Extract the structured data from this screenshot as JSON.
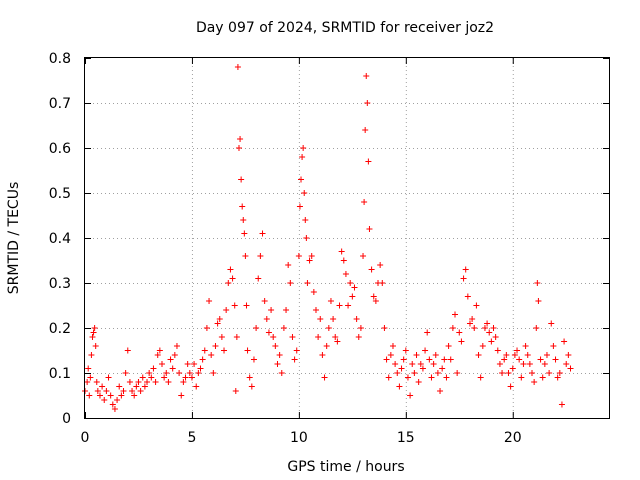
{
  "chart_data": {
    "type": "scatter",
    "title": "Day 097 of 2024, SRMTID for receiver joz2",
    "xlabel": "GPS time / hours",
    "ylabel": "SRMTID / TECUs",
    "xlim": [
      0,
      24.5
    ],
    "ylim": [
      0,
      0.8
    ],
    "xticks": [
      0,
      5,
      10,
      15,
      20
    ],
    "yticks": [
      0,
      0.1,
      0.2,
      0.3,
      0.4,
      0.5,
      0.6,
      0.7,
      0.8
    ],
    "xtick_labels": [
      "0",
      "5",
      "10",
      "15",
      "20"
    ],
    "ytick_labels": [
      "0",
      "0.1",
      "0.2",
      "0.3",
      "0.4",
      "0.5",
      "0.6",
      "0.7",
      "0.8"
    ],
    "grid": true,
    "marker": "plus",
    "color": "#ff0000",
    "series": [
      {
        "name": "SRMTID",
        "points": [
          [
            0.0,
            0.06
          ],
          [
            0.1,
            0.08
          ],
          [
            0.15,
            0.11
          ],
          [
            0.2,
            0.05
          ],
          [
            0.25,
            0.09
          ],
          [
            0.3,
            0.14
          ],
          [
            0.35,
            0.18
          ],
          [
            0.4,
            0.19
          ],
          [
            0.45,
            0.2
          ],
          [
            0.5,
            0.16
          ],
          [
            0.55,
            0.08
          ],
          [
            0.6,
            0.06
          ],
          [
            0.7,
            0.05
          ],
          [
            0.8,
            0.07
          ],
          [
            0.9,
            0.04
          ],
          [
            1.0,
            0.06
          ],
          [
            1.1,
            0.09
          ],
          [
            1.2,
            0.05
          ],
          [
            1.3,
            0.03
          ],
          [
            1.4,
            0.02
          ],
          [
            1.5,
            0.04
          ],
          [
            1.6,
            0.07
          ],
          [
            1.7,
            0.05
          ],
          [
            1.8,
            0.06
          ],
          [
            1.9,
            0.1
          ],
          [
            2.0,
            0.15
          ],
          [
            2.1,
            0.08
          ],
          [
            2.2,
            0.06
          ],
          [
            2.3,
            0.05
          ],
          [
            2.4,
            0.07
          ],
          [
            2.5,
            0.08
          ],
          [
            2.6,
            0.06
          ],
          [
            2.7,
            0.09
          ],
          [
            2.8,
            0.07
          ],
          [
            2.9,
            0.08
          ],
          [
            3.0,
            0.1
          ],
          [
            3.1,
            0.09
          ],
          [
            3.2,
            0.11
          ],
          [
            3.3,
            0.08
          ],
          [
            3.4,
            0.14
          ],
          [
            3.5,
            0.15
          ],
          [
            3.6,
            0.12
          ],
          [
            3.7,
            0.09
          ],
          [
            3.8,
            0.1
          ],
          [
            3.9,
            0.08
          ],
          [
            4.0,
            0.13
          ],
          [
            4.1,
            0.11
          ],
          [
            4.2,
            0.14
          ],
          [
            4.3,
            0.16
          ],
          [
            4.4,
            0.1
          ],
          [
            4.5,
            0.05
          ],
          [
            4.6,
            0.08
          ],
          [
            4.7,
            0.09
          ],
          [
            4.8,
            0.12
          ],
          [
            4.9,
            0.1
          ],
          [
            5.0,
            0.09
          ],
          [
            5.1,
            0.12
          ],
          [
            5.2,
            0.07
          ],
          [
            5.3,
            0.1
          ],
          [
            5.4,
            0.11
          ],
          [
            5.5,
            0.13
          ],
          [
            5.6,
            0.15
          ],
          [
            5.7,
            0.2
          ],
          [
            5.8,
            0.26
          ],
          [
            5.9,
            0.14
          ],
          [
            6.0,
            0.1
          ],
          [
            6.1,
            0.16
          ],
          [
            6.2,
            0.21
          ],
          [
            6.3,
            0.22
          ],
          [
            6.4,
            0.18
          ],
          [
            6.5,
            0.15
          ],
          [
            6.6,
            0.24
          ],
          [
            6.7,
            0.3
          ],
          [
            6.8,
            0.33
          ],
          [
            6.9,
            0.31
          ],
          [
            7.0,
            0.25
          ],
          [
            7.05,
            0.06
          ],
          [
            7.1,
            0.18
          ],
          [
            7.15,
            0.78
          ],
          [
            7.2,
            0.6
          ],
          [
            7.25,
            0.62
          ],
          [
            7.3,
            0.53
          ],
          [
            7.35,
            0.47
          ],
          [
            7.4,
            0.44
          ],
          [
            7.45,
            0.41
          ],
          [
            7.5,
            0.36
          ],
          [
            7.55,
            0.25
          ],
          [
            7.6,
            0.15
          ],
          [
            7.7,
            0.09
          ],
          [
            7.8,
            0.07
          ],
          [
            7.9,
            0.13
          ],
          [
            8.0,
            0.2
          ],
          [
            8.1,
            0.31
          ],
          [
            8.2,
            0.36
          ],
          [
            8.3,
            0.41
          ],
          [
            8.4,
            0.26
          ],
          [
            8.5,
            0.22
          ],
          [
            8.6,
            0.19
          ],
          [
            8.7,
            0.24
          ],
          [
            8.8,
            0.18
          ],
          [
            8.9,
            0.16
          ],
          [
            9.0,
            0.12
          ],
          [
            9.1,
            0.14
          ],
          [
            9.2,
            0.1
          ],
          [
            9.3,
            0.2
          ],
          [
            9.4,
            0.24
          ],
          [
            9.5,
            0.34
          ],
          [
            9.6,
            0.3
          ],
          [
            9.7,
            0.18
          ],
          [
            9.8,
            0.13
          ],
          [
            9.9,
            0.15
          ],
          [
            10.0,
            0.36
          ],
          [
            10.05,
            0.47
          ],
          [
            10.1,
            0.53
          ],
          [
            10.15,
            0.58
          ],
          [
            10.2,
            0.6
          ],
          [
            10.25,
            0.5
          ],
          [
            10.3,
            0.44
          ],
          [
            10.35,
            0.4
          ],
          [
            10.4,
            0.3
          ],
          [
            10.5,
            0.35
          ],
          [
            10.6,
            0.36
          ],
          [
            10.7,
            0.28
          ],
          [
            10.8,
            0.24
          ],
          [
            10.9,
            0.18
          ],
          [
            11.0,
            0.22
          ],
          [
            11.1,
            0.14
          ],
          [
            11.2,
            0.09
          ],
          [
            11.3,
            0.16
          ],
          [
            11.4,
            0.2
          ],
          [
            11.5,
            0.26
          ],
          [
            11.6,
            0.22
          ],
          [
            11.7,
            0.18
          ],
          [
            11.8,
            0.17
          ],
          [
            11.9,
            0.25
          ],
          [
            12.0,
            0.37
          ],
          [
            12.1,
            0.35
          ],
          [
            12.2,
            0.32
          ],
          [
            12.3,
            0.25
          ],
          [
            12.4,
            0.3
          ],
          [
            12.5,
            0.27
          ],
          [
            12.6,
            0.29
          ],
          [
            12.7,
            0.22
          ],
          [
            12.8,
            0.18
          ],
          [
            12.9,
            0.2
          ],
          [
            13.0,
            0.36
          ],
          [
            13.05,
            0.48
          ],
          [
            13.1,
            0.64
          ],
          [
            13.15,
            0.76
          ],
          [
            13.2,
            0.7
          ],
          [
            13.25,
            0.57
          ],
          [
            13.3,
            0.42
          ],
          [
            13.4,
            0.33
          ],
          [
            13.5,
            0.27
          ],
          [
            13.6,
            0.26
          ],
          [
            13.7,
            0.3
          ],
          [
            13.8,
            0.34
          ],
          [
            13.9,
            0.3
          ],
          [
            14.0,
            0.2
          ],
          [
            14.1,
            0.13
          ],
          [
            14.2,
            0.09
          ],
          [
            14.3,
            0.14
          ],
          [
            14.4,
            0.16
          ],
          [
            14.5,
            0.12
          ],
          [
            14.6,
            0.1
          ],
          [
            14.7,
            0.07
          ],
          [
            14.8,
            0.11
          ],
          [
            14.9,
            0.13
          ],
          [
            15.0,
            0.15
          ],
          [
            15.1,
            0.09
          ],
          [
            15.2,
            0.05
          ],
          [
            15.3,
            0.12
          ],
          [
            15.4,
            0.1
          ],
          [
            15.5,
            0.14
          ],
          [
            15.6,
            0.08
          ],
          [
            15.7,
            0.12
          ],
          [
            15.8,
            0.11
          ],
          [
            15.9,
            0.15
          ],
          [
            16.0,
            0.19
          ],
          [
            16.1,
            0.13
          ],
          [
            16.2,
            0.09
          ],
          [
            16.3,
            0.12
          ],
          [
            16.4,
            0.14
          ],
          [
            16.5,
            0.1
          ],
          [
            16.6,
            0.06
          ],
          [
            16.7,
            0.11
          ],
          [
            16.8,
            0.13
          ],
          [
            16.9,
            0.09
          ],
          [
            17.0,
            0.16
          ],
          [
            17.1,
            0.13
          ],
          [
            17.2,
            0.2
          ],
          [
            17.3,
            0.23
          ],
          [
            17.4,
            0.1
          ],
          [
            17.5,
            0.19
          ],
          [
            17.6,
            0.17
          ],
          [
            17.7,
            0.31
          ],
          [
            17.8,
            0.33
          ],
          [
            17.9,
            0.27
          ],
          [
            18.0,
            0.21
          ],
          [
            18.1,
            0.22
          ],
          [
            18.2,
            0.2
          ],
          [
            18.3,
            0.25
          ],
          [
            18.4,
            0.14
          ],
          [
            18.5,
            0.09
          ],
          [
            18.6,
            0.16
          ],
          [
            18.7,
            0.2
          ],
          [
            18.8,
            0.21
          ],
          [
            18.9,
            0.19
          ],
          [
            19.0,
            0.17
          ],
          [
            19.1,
            0.2
          ],
          [
            19.2,
            0.18
          ],
          [
            19.3,
            0.15
          ],
          [
            19.4,
            0.12
          ],
          [
            19.5,
            0.1
          ],
          [
            19.6,
            0.13
          ],
          [
            19.7,
            0.14
          ],
          [
            19.8,
            0.1
          ],
          [
            19.9,
            0.07
          ],
          [
            20.0,
            0.11
          ],
          [
            20.1,
            0.14
          ],
          [
            20.2,
            0.15
          ],
          [
            20.3,
            0.13
          ],
          [
            20.4,
            0.09
          ],
          [
            20.5,
            0.12
          ],
          [
            20.6,
            0.16
          ],
          [
            20.7,
            0.14
          ],
          [
            20.8,
            0.12
          ],
          [
            20.9,
            0.1
          ],
          [
            21.0,
            0.08
          ],
          [
            21.1,
            0.2
          ],
          [
            21.15,
            0.3
          ],
          [
            21.2,
            0.26
          ],
          [
            21.3,
            0.13
          ],
          [
            21.4,
            0.09
          ],
          [
            21.5,
            0.12
          ],
          [
            21.6,
            0.14
          ],
          [
            21.7,
            0.1
          ],
          [
            21.8,
            0.21
          ],
          [
            21.9,
            0.16
          ],
          [
            22.0,
            0.13
          ],
          [
            22.1,
            0.09
          ],
          [
            22.2,
            0.1
          ],
          [
            22.3,
            0.03
          ],
          [
            22.4,
            0.17
          ],
          [
            22.5,
            0.12
          ],
          [
            22.6,
            0.14
          ],
          [
            22.7,
            0.11
          ]
        ]
      }
    ]
  }
}
